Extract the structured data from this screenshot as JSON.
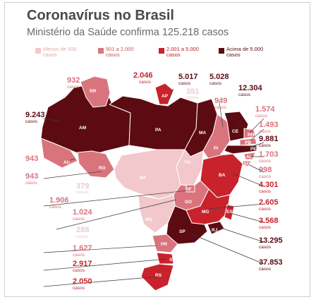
{
  "header": {
    "title": "Coronavírus no Brasil",
    "subtitle": "Ministério da Saúde confirma 125.218 casos"
  },
  "legend": [
    {
      "label": "Menos de 500 casos",
      "color": "#f2c8cc"
    },
    {
      "label": "501 a 2.000 casos",
      "color": "#d9747d"
    },
    {
      "label": "2.001 a 5.000 casos",
      "color": "#c8232c"
    },
    {
      "label": "Acima de 5.000 casos",
      "color": "#5c0b12"
    }
  ],
  "unit_label": "casos",
  "states": [
    {
      "code": "AM",
      "cases": "9.243"
    },
    {
      "code": "RR",
      "cases": "932"
    },
    {
      "code": "AP",
      "cases": "2.046"
    },
    {
      "code": "PA",
      "cases": "5.017"
    },
    {
      "code": "MA",
      "cases": "5.028"
    },
    {
      "code": "TO",
      "cases": "351"
    },
    {
      "code": "PI",
      "cases": "949"
    },
    {
      "code": "CE",
      "cases": "12.304"
    },
    {
      "code": "RN",
      "cases": "1.574"
    },
    {
      "code": "PB",
      "cases": "1.493"
    },
    {
      "code": "PE",
      "cases": "9.881"
    },
    {
      "code": "AL",
      "cases": "1.703"
    },
    {
      "code": "SE",
      "cases": "998"
    },
    {
      "code": "BA",
      "cases": "4.301"
    },
    {
      "code": "AC",
      "cases": "943"
    },
    {
      "code": "RO",
      "cases": "943"
    },
    {
      "code": "MT",
      "cases": "379"
    },
    {
      "code": "DF",
      "cases": "1.906"
    },
    {
      "code": "GO",
      "cases": "1.024"
    },
    {
      "code": "MS",
      "cases": "288"
    },
    {
      "code": "MG",
      "cases": "2.605"
    },
    {
      "code": "ES",
      "cases": "3.568"
    },
    {
      "code": "RJ",
      "cases": "13.295"
    },
    {
      "code": "SP",
      "cases": "37.853"
    },
    {
      "code": "PR",
      "cases": "1.627"
    },
    {
      "code": "SC",
      "cases": "2.917"
    },
    {
      "code": "RS",
      "cases": "2.050"
    }
  ]
}
